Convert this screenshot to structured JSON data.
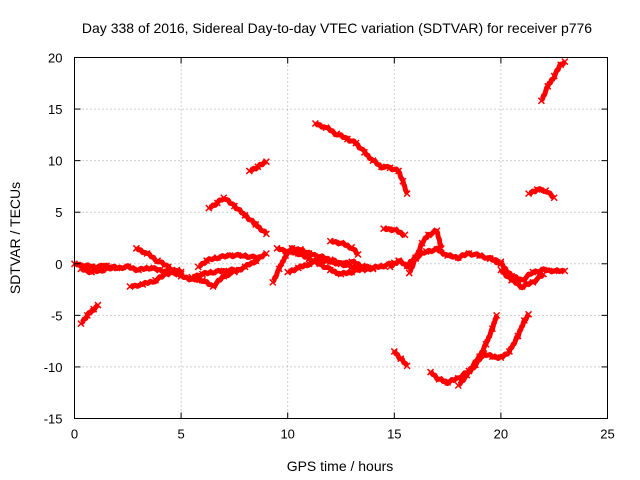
{
  "chart_data": {
    "type": "scatter",
    "title": "Day 338 of 2016, Sidereal Day-to-day VTEC variation (SDTVAR) for receiver p776",
    "xlabel": "GPS time / hours",
    "ylabel": "SDTVAR / TECUs",
    "xlim": [
      0,
      25
    ],
    "ylim": [
      -15,
      20
    ],
    "xticks": [
      0,
      5,
      10,
      15,
      20,
      25
    ],
    "yticks": [
      20,
      15,
      10,
      5,
      0,
      -5,
      -10,
      -15
    ],
    "grid": true,
    "marker_color": "#ff0000",
    "series": [
      {
        "name": "s1",
        "points": [
          [
            0.0,
            0.0
          ],
          [
            0.5,
            -0.2
          ],
          [
            1.0,
            -0.3
          ],
          [
            1.5,
            -0.2
          ],
          [
            2.0,
            -0.4
          ],
          [
            2.5,
            -0.3
          ],
          [
            3.0,
            -0.6
          ],
          [
            3.5,
            -0.4
          ],
          [
            4.0,
            -0.6
          ],
          [
            4.5,
            -0.8
          ],
          [
            5.0,
            -1.0
          ]
        ]
      },
      {
        "name": "s2",
        "points": [
          [
            0.3,
            -0.5
          ],
          [
            0.8,
            -0.8
          ],
          [
            1.3,
            -0.6
          ],
          [
            1.8,
            -0.4
          ]
        ]
      },
      {
        "name": "s3",
        "points": [
          [
            0.3,
            -5.8
          ],
          [
            0.6,
            -5.0
          ],
          [
            0.9,
            -4.4
          ],
          [
            1.1,
            -4.0
          ]
        ]
      },
      {
        "name": "s4",
        "points": [
          [
            2.9,
            1.5
          ],
          [
            3.4,
            1.0
          ],
          [
            3.9,
            0.3
          ],
          [
            4.4,
            -0.3
          ],
          [
            4.9,
            -1.0
          ]
        ]
      },
      {
        "name": "s5",
        "points": [
          [
            2.6,
            -2.2
          ],
          [
            3.2,
            -2.0
          ],
          [
            3.8,
            -1.6
          ],
          [
            4.3,
            -1.0
          ],
          [
            4.8,
            -0.6
          ],
          [
            5.0,
            -0.8
          ]
        ]
      },
      {
        "name": "s6",
        "points": [
          [
            5.0,
            -1.2
          ],
          [
            5.5,
            -1.5
          ],
          [
            6.0,
            -1.6
          ],
          [
            6.5,
            -2.2
          ],
          [
            7.0,
            -1.2
          ],
          [
            7.5,
            -0.8
          ],
          [
            8.0,
            -0.3
          ],
          [
            8.5,
            0.3
          ],
          [
            9.0,
            1.0
          ]
        ]
      },
      {
        "name": "s7",
        "points": [
          [
            5.5,
            -1.3
          ],
          [
            6.0,
            -1.0
          ],
          [
            6.5,
            -0.8
          ],
          [
            7.0,
            -0.7
          ],
          [
            7.5,
            -0.6
          ]
        ]
      },
      {
        "name": "s8",
        "points": [
          [
            5.8,
            -0.3
          ],
          [
            6.2,
            0.3
          ],
          [
            6.7,
            0.6
          ],
          [
            7.3,
            0.8
          ],
          [
            7.9,
            0.8
          ],
          [
            8.5,
            0.6
          ]
        ]
      },
      {
        "name": "s9",
        "points": [
          [
            6.3,
            5.4
          ],
          [
            6.7,
            5.9
          ],
          [
            7.0,
            6.4
          ],
          [
            7.5,
            5.6
          ],
          [
            8.0,
            4.7
          ],
          [
            8.5,
            3.8
          ],
          [
            9.0,
            2.9
          ]
        ]
      },
      {
        "name": "s10",
        "points": [
          [
            8.2,
            9.0
          ],
          [
            8.6,
            9.4
          ],
          [
            9.0,
            9.9
          ]
        ]
      },
      {
        "name": "s11",
        "points": [
          [
            9.3,
            -1.8
          ],
          [
            9.6,
            -0.5
          ],
          [
            9.9,
            0.8
          ],
          [
            10.2,
            1.5
          ],
          [
            10.6,
            1.4
          ],
          [
            11.0,
            1.0
          ],
          [
            11.5,
            0.7
          ],
          [
            12.0,
            0.4
          ],
          [
            12.5,
            0.0
          ],
          [
            13.0,
            -0.3
          ],
          [
            13.5,
            -0.6
          ],
          [
            14.0,
            -0.4
          ],
          [
            14.5,
            -0.2
          ],
          [
            15.0,
            0.1
          ]
        ]
      },
      {
        "name": "s12",
        "points": [
          [
            9.5,
            1.5
          ],
          [
            10.0,
            1.2
          ],
          [
            10.5,
            1.0
          ],
          [
            11.0,
            0.5
          ],
          [
            11.5,
            0.0
          ],
          [
            12.0,
            -0.6
          ],
          [
            12.5,
            -1.0
          ],
          [
            13.0,
            -0.8
          ],
          [
            13.5,
            -0.4
          ]
        ]
      },
      {
        "name": "s13",
        "points": [
          [
            10.0,
            -0.8
          ],
          [
            10.5,
            -0.4
          ],
          [
            11.0,
            0.0
          ],
          [
            11.5,
            0.3
          ],
          [
            12.0,
            0.2
          ],
          [
            12.5,
            0.0
          ],
          [
            13.0,
            0.2
          ],
          [
            13.5,
            -0.2
          ],
          [
            14.0,
            -0.5
          ]
        ]
      },
      {
        "name": "s14",
        "points": [
          [
            11.3,
            13.6
          ],
          [
            11.8,
            13.2
          ],
          [
            12.3,
            12.6
          ],
          [
            12.8,
            12.1
          ],
          [
            13.2,
            11.7
          ],
          [
            13.6,
            10.8
          ],
          [
            14.0,
            10.0
          ],
          [
            14.4,
            9.4
          ],
          [
            14.8,
            9.3
          ],
          [
            15.2,
            9.0
          ],
          [
            15.4,
            8.0
          ],
          [
            15.6,
            6.8
          ]
        ]
      },
      {
        "name": "s15",
        "points": [
          [
            12.0,
            2.2
          ],
          [
            12.5,
            2.0
          ],
          [
            13.0,
            1.6
          ],
          [
            13.3,
            0.9
          ]
        ]
      },
      {
        "name": "s16",
        "points": [
          [
            14.5,
            3.4
          ],
          [
            15.0,
            3.3
          ],
          [
            15.5,
            2.8
          ]
        ]
      },
      {
        "name": "s17",
        "points": [
          [
            14.8,
            -0.3
          ],
          [
            15.2,
            0.3
          ],
          [
            15.6,
            -0.2
          ],
          [
            16.0,
            0.6
          ],
          [
            16.5,
            1.2
          ],
          [
            17.0,
            1.4
          ],
          [
            17.5,
            0.8
          ],
          [
            18.0,
            0.6
          ],
          [
            18.5,
            1.0
          ],
          [
            19.0,
            0.8
          ],
          [
            19.5,
            0.5
          ],
          [
            20.0,
            0.2
          ]
        ]
      },
      {
        "name": "s18",
        "points": [
          [
            15.7,
            -0.9
          ],
          [
            16.0,
            0.5
          ],
          [
            16.3,
            2.0
          ],
          [
            16.6,
            2.8
          ],
          [
            17.0,
            3.2
          ],
          [
            17.2,
            1.5
          ]
        ]
      },
      {
        "name": "s19",
        "points": [
          [
            15.0,
            -8.5
          ],
          [
            15.3,
            -9.2
          ],
          [
            15.6,
            -9.9
          ]
        ]
      },
      {
        "name": "s20",
        "points": [
          [
            16.7,
            -10.5
          ],
          [
            17.1,
            -11.2
          ],
          [
            17.5,
            -11.5
          ],
          [
            18.0,
            -11.1
          ],
          [
            18.5,
            -10.4
          ],
          [
            19.0,
            -9.0
          ],
          [
            19.3,
            -7.8
          ],
          [
            19.6,
            -6.3
          ],
          [
            19.8,
            -5.0
          ]
        ]
      },
      {
        "name": "s21",
        "points": [
          [
            18.0,
            -11.8
          ],
          [
            18.4,
            -10.8
          ],
          [
            18.8,
            -9.8
          ],
          [
            19.2,
            -8.7
          ],
          [
            19.6,
            -9.0
          ],
          [
            20.0,
            -9.1
          ],
          [
            20.4,
            -8.5
          ],
          [
            20.8,
            -7.0
          ],
          [
            21.1,
            -5.5
          ],
          [
            21.3,
            -4.9
          ]
        ]
      },
      {
        "name": "s22",
        "points": [
          [
            19.5,
            0.5
          ],
          [
            20.0,
            0.0
          ],
          [
            20.5,
            -1.2
          ],
          [
            21.0,
            -1.6
          ],
          [
            21.5,
            -0.8
          ],
          [
            22.0,
            -0.6
          ],
          [
            22.5,
            -0.7
          ],
          [
            23.0,
            -0.7
          ]
        ]
      },
      {
        "name": "s23",
        "points": [
          [
            20.0,
            -0.6
          ],
          [
            20.5,
            -1.6
          ],
          [
            21.0,
            -2.2
          ],
          [
            21.5,
            -1.8
          ],
          [
            22.0,
            -1.0
          ]
        ]
      },
      {
        "name": "s24",
        "points": [
          [
            21.3,
            6.8
          ],
          [
            21.7,
            7.2
          ],
          [
            22.1,
            7.1
          ],
          [
            22.5,
            6.4
          ]
        ]
      },
      {
        "name": "s25",
        "points": [
          [
            21.9,
            15.8
          ],
          [
            22.2,
            17.2
          ],
          [
            22.5,
            18.2
          ],
          [
            22.8,
            19.3
          ],
          [
            23.0,
            19.6
          ]
        ]
      }
    ]
  }
}
